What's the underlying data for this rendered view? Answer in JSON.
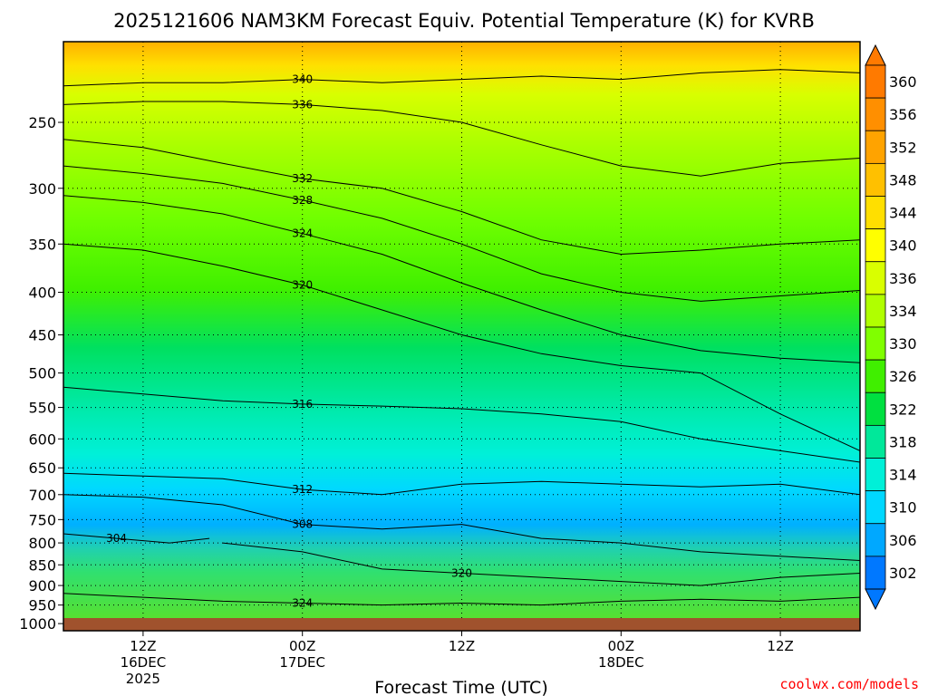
{
  "chart_data": {
    "type": "heatmap",
    "title": "2025121606 NAM3KM Forecast Equiv. Potential Temperature (K) for KVRB",
    "xlabel": "Forecast Time (UTC)",
    "ylabel": "",
    "credit": "coolwx.com/models",
    "x_ticks": [
      {
        "line1": "12Z",
        "line2": "16DEC",
        "line3": "2025"
      },
      {
        "line1": "00Z",
        "line2": "17DEC",
        "line3": ""
      },
      {
        "line1": "12Z",
        "line2": "",
        "line3": ""
      },
      {
        "line1": "00Z",
        "line2": "18DEC",
        "line3": ""
      },
      {
        "line1": "12Z",
        "line2": "",
        "line3": ""
      }
    ],
    "x_range_hours": [
      0,
      60
    ],
    "x_tick_hours": [
      6,
      18,
      30,
      42,
      54
    ],
    "y_ticks": [
      250,
      300,
      350,
      400,
      450,
      500,
      550,
      600,
      650,
      700,
      750,
      800,
      850,
      900,
      950,
      1000
    ],
    "y_range_hpa": [
      1020,
      200
    ],
    "y_scale": "log",
    "colorbar": {
      "labels": [
        360,
        356,
        352,
        348,
        344,
        340,
        336,
        334,
        330,
        326,
        322,
        318,
        314,
        310,
        306,
        302
      ],
      "colors": [
        "#ff7a00",
        "#ff8f00",
        "#ffa300",
        "#ffc000",
        "#ffdf00",
        "#ffff00",
        "#d9ff00",
        "#b0ff00",
        "#80ff00",
        "#40ef00",
        "#00e040",
        "#00e89a",
        "#00f0d8",
        "#00d8ff",
        "#00a8ff",
        "#0078ff"
      ]
    },
    "contours": [
      {
        "value": 340,
        "label": "340",
        "points": [
          [
            0,
            226
          ],
          [
            6,
            224
          ],
          [
            12,
            224
          ],
          [
            18,
            222
          ],
          [
            24,
            224
          ],
          [
            30,
            222
          ],
          [
            36,
            220
          ],
          [
            42,
            222
          ],
          [
            48,
            218
          ],
          [
            54,
            216
          ],
          [
            60,
            218
          ]
        ]
      },
      {
        "value": 336,
        "label": "336",
        "points": [
          [
            0,
            238
          ],
          [
            6,
            236
          ],
          [
            12,
            236
          ],
          [
            18,
            238
          ],
          [
            24,
            242
          ],
          [
            30,
            250
          ],
          [
            36,
            266
          ],
          [
            42,
            282
          ],
          [
            48,
            290
          ],
          [
            54,
            280
          ],
          [
            60,
            276
          ]
        ]
      },
      {
        "value": 332,
        "label": "332",
        "points": [
          [
            0,
            262
          ],
          [
            6,
            268
          ],
          [
            12,
            280
          ],
          [
            18,
            292
          ],
          [
            24,
            300
          ],
          [
            30,
            320
          ],
          [
            36,
            346
          ],
          [
            42,
            360
          ],
          [
            48,
            356
          ],
          [
            54,
            350
          ],
          [
            60,
            346
          ]
        ]
      },
      {
        "value": 328,
        "label": "328",
        "points": [
          [
            0,
            282
          ],
          [
            6,
            288
          ],
          [
            12,
            296
          ],
          [
            18,
            310
          ],
          [
            24,
            326
          ],
          [
            30,
            350
          ],
          [
            36,
            380
          ],
          [
            42,
            400
          ],
          [
            48,
            410
          ],
          [
            54,
            404
          ],
          [
            60,
            398
          ]
        ]
      },
      {
        "value": 324,
        "label": "324",
        "points": [
          [
            0,
            306
          ],
          [
            6,
            312
          ],
          [
            12,
            322
          ],
          [
            18,
            340
          ],
          [
            24,
            360
          ],
          [
            30,
            390
          ],
          [
            36,
            420
          ],
          [
            42,
            450
          ],
          [
            48,
            470
          ],
          [
            54,
            480
          ],
          [
            60,
            486
          ]
        ]
      },
      {
        "value": 320,
        "label": "320",
        "points": [
          [
            0,
            350
          ],
          [
            6,
            356
          ],
          [
            12,
            372
          ],
          [
            18,
            392
          ],
          [
            24,
            420
          ],
          [
            30,
            450
          ],
          [
            36,
            474
          ],
          [
            42,
            490
          ],
          [
            48,
            500
          ],
          [
            54,
            560
          ],
          [
            60,
            620
          ]
        ]
      },
      {
        "value": 316,
        "label": "316",
        "points": [
          [
            0,
            520
          ],
          [
            6,
            530
          ],
          [
            12,
            540
          ],
          [
            18,
            545
          ],
          [
            24,
            548
          ],
          [
            30,
            552
          ],
          [
            36,
            560
          ],
          [
            42,
            572
          ],
          [
            48,
            600
          ],
          [
            54,
            620
          ],
          [
            60,
            640
          ]
        ]
      },
      {
        "value": 312,
        "label": "312",
        "points": [
          [
            0,
            660
          ],
          [
            6,
            665
          ],
          [
            12,
            670
          ],
          [
            18,
            690
          ],
          [
            24,
            700
          ],
          [
            30,
            680
          ],
          [
            36,
            675
          ],
          [
            42,
            680
          ],
          [
            48,
            685
          ],
          [
            54,
            680
          ],
          [
            60,
            700
          ]
        ]
      },
      {
        "value": 308,
        "label": "308",
        "points": [
          [
            0,
            700
          ],
          [
            6,
            705
          ],
          [
            12,
            720
          ],
          [
            18,
            760
          ],
          [
            24,
            770
          ],
          [
            30,
            760
          ],
          [
            36,
            790
          ],
          [
            42,
            800
          ],
          [
            48,
            820
          ],
          [
            54,
            830
          ],
          [
            60,
            840
          ]
        ]
      },
      {
        "value": 304,
        "label": "304",
        "points": [
          [
            0,
            780
          ],
          [
            4,
            790
          ],
          [
            8,
            800
          ],
          [
            11,
            790
          ]
        ]
      },
      {
        "value": 320,
        "label": "320",
        "points": [
          [
            12,
            800
          ],
          [
            18,
            820
          ],
          [
            24,
            860
          ],
          [
            30,
            870
          ],
          [
            36,
            880
          ],
          [
            42,
            890
          ],
          [
            48,
            900
          ],
          [
            54,
            880
          ],
          [
            60,
            870
          ]
        ]
      },
      {
        "value": 324,
        "label": "324",
        "points": [
          [
            0,
            920
          ],
          [
            6,
            930
          ],
          [
            12,
            940
          ],
          [
            18,
            945
          ],
          [
            24,
            950
          ],
          [
            30,
            945
          ],
          [
            36,
            950
          ],
          [
            42,
            940
          ],
          [
            48,
            935
          ],
          [
            54,
            940
          ],
          [
            60,
            930
          ]
        ]
      }
    ]
  }
}
